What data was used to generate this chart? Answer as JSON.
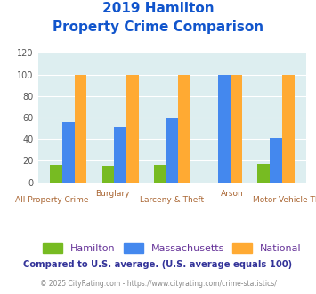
{
  "title_line1": "2019 Hamilton",
  "title_line2": "Property Crime Comparison",
  "categories": [
    "All Property Crime",
    "Burglary",
    "Larceny & Theft",
    "Arson",
    "Motor Vehicle Theft"
  ],
  "top_labels": [
    "",
    "Burglary",
    "",
    "Arson",
    ""
  ],
  "bottom_labels": [
    "All Property Crime",
    "",
    "Larceny & Theft",
    "",
    "Motor Vehicle Theft"
  ],
  "hamilton": [
    16,
    15,
    16,
    0,
    17
  ],
  "massachusetts": [
    56,
    52,
    59,
    100,
    41
  ],
  "national": [
    100,
    100,
    100,
    100,
    100
  ],
  "hamilton_color": "#77bb22",
  "massachusetts_color": "#4488ee",
  "national_color": "#ffaa33",
  "ylim": [
    0,
    120
  ],
  "yticks": [
    0,
    20,
    40,
    60,
    80,
    100,
    120
  ],
  "background_color": "#ddeef0",
  "legend_labels": [
    "Hamilton",
    "Massachusetts",
    "National"
  ],
  "legend_text_color": "#663399",
  "footer_text1": "Compared to U.S. average. (U.S. average equals 100)",
  "footer_text2": "© 2025 CityRating.com - https://www.cityrating.com/crime-statistics/",
  "title_color": "#1155cc",
  "footer1_color": "#333399",
  "footer2_color": "#888888",
  "xlabel_color": "#aa6633"
}
